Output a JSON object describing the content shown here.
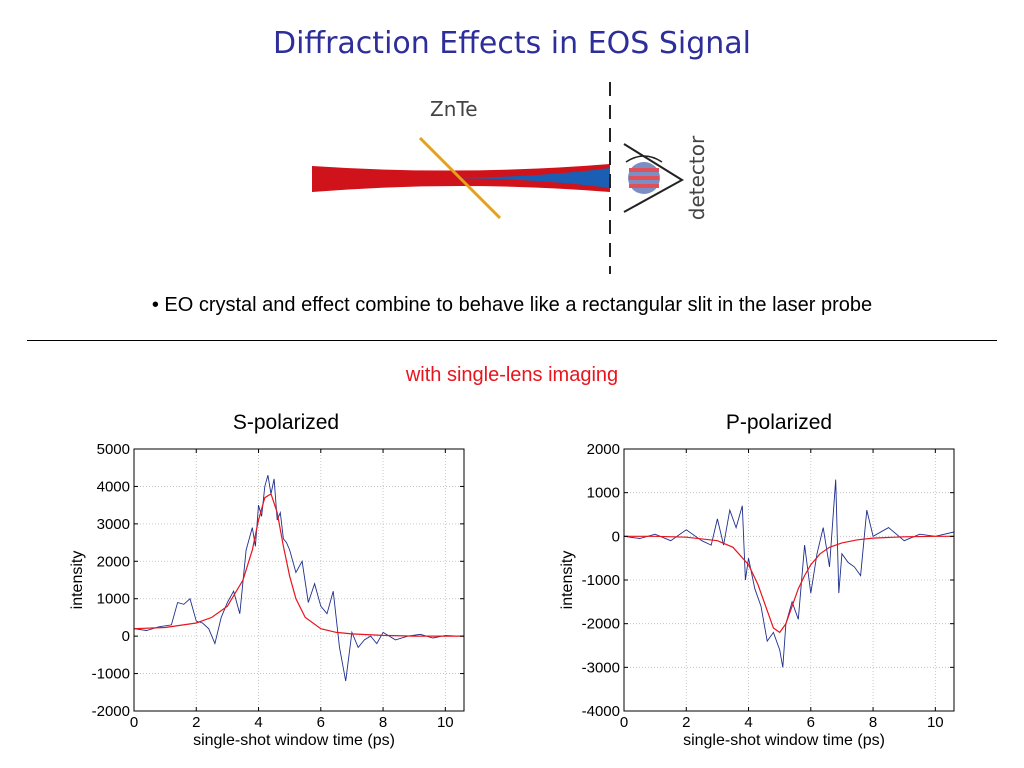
{
  "slide": {
    "title": "Diffraction Effects in EOS Signal",
    "bullet": "• EO crystal and effect combine to behave like a rectangular slit in the laser probe",
    "subtitle": "with single-lens imaging"
  },
  "diagram": {
    "crystal_label": "ZnTe",
    "detector_label": "detector",
    "colors": {
      "beam": "#d0121b",
      "diffracted": "#1a5fb4",
      "crystal": "#e3a21a"
    }
  },
  "colors": {
    "data": "#1f2f8c",
    "fit": "#e8141e"
  },
  "chart_data": [
    {
      "type": "line",
      "title": "S-polarized",
      "xlabel": "single-shot window time (ps)",
      "ylabel": "intensity",
      "xlim": [
        0,
        10.6
      ],
      "ylim": [
        -2000,
        5000
      ],
      "xticks": [
        0,
        2,
        4,
        6,
        8,
        10
      ],
      "yticks": [
        5000,
        4000,
        3000,
        2000,
        1000,
        0,
        -1000,
        -2000
      ],
      "grid": true,
      "series": [
        {
          "role": "measured",
          "x": [
            0,
            0.4,
            0.8,
            1.2,
            1.4,
            1.6,
            1.8,
            2.0,
            2.2,
            2.4,
            2.6,
            2.8,
            3.0,
            3.2,
            3.4,
            3.6,
            3.8,
            3.9,
            4.0,
            4.1,
            4.2,
            4.3,
            4.4,
            4.5,
            4.6,
            4.7,
            4.8,
            4.9,
            5.0,
            5.2,
            5.4,
            5.6,
            5.8,
            6.0,
            6.2,
            6.4,
            6.6,
            6.8,
            7.0,
            7.2,
            7.4,
            7.6,
            7.8,
            8.0,
            8.4,
            8.8,
            9.2,
            9.6,
            10.0,
            10.4,
            10.6
          ],
          "y": [
            200,
            150,
            250,
            300,
            900,
            850,
            1000,
            400,
            350,
            200,
            -200,
            500,
            900,
            1200,
            600,
            2300,
            2900,
            2400,
            3500,
            3200,
            4000,
            4300,
            3800,
            4200,
            3100,
            3300,
            2600,
            2500,
            2300,
            1700,
            2000,
            900,
            1400,
            800,
            600,
            1200,
            -300,
            -1200,
            100,
            -300,
            -100,
            0,
            -200,
            100,
            -100,
            0,
            50,
            -50,
            20,
            0,
            0
          ]
        },
        {
          "role": "fit",
          "x": [
            0,
            1,
            2,
            2.5,
            3,
            3.5,
            3.8,
            4.0,
            4.2,
            4.4,
            4.6,
            4.8,
            5.0,
            5.2,
            5.5,
            6.0,
            6.5,
            7,
            8,
            9,
            10,
            10.6
          ],
          "y": [
            200,
            230,
            350,
            500,
            800,
            1500,
            2300,
            3100,
            3700,
            3800,
            3300,
            2400,
            1600,
            1000,
            500,
            200,
            100,
            60,
            20,
            0,
            0,
            0
          ]
        }
      ]
    },
    {
      "type": "line",
      "title": "P-polarized",
      "xlabel": "single-shot window time (ps)",
      "ylabel": "intensity",
      "xlim": [
        0,
        10.6
      ],
      "ylim": [
        -4000,
        2000
      ],
      "xticks": [
        0,
        2,
        4,
        6,
        8,
        10
      ],
      "yticks": [
        2000,
        1000,
        0,
        -1000,
        -2000,
        -3000,
        -4000
      ],
      "grid": true,
      "series": [
        {
          "role": "measured",
          "x": [
            0,
            0.5,
            1.0,
            1.5,
            2.0,
            2.5,
            2.8,
            3.0,
            3.2,
            3.4,
            3.6,
            3.8,
            3.9,
            4.0,
            4.2,
            4.4,
            4.6,
            4.8,
            5.0,
            5.1,
            5.2,
            5.4,
            5.6,
            5.8,
            6.0,
            6.2,
            6.4,
            6.6,
            6.8,
            6.9,
            7.0,
            7.2,
            7.4,
            7.6,
            7.8,
            8.0,
            8.5,
            9.0,
            9.5,
            10.0,
            10.6
          ],
          "y": [
            0,
            -50,
            50,
            -100,
            150,
            -100,
            -200,
            400,
            -200,
            600,
            200,
            700,
            -1000,
            -500,
            -1200,
            -1600,
            -2400,
            -2200,
            -2600,
            -3000,
            -2000,
            -1500,
            -1900,
            -200,
            -1300,
            -400,
            200,
            -700,
            1300,
            -1300,
            -400,
            -600,
            -700,
            -900,
            600,
            0,
            200,
            -100,
            50,
            0,
            100
          ]
        },
        {
          "role": "fit",
          "x": [
            0,
            1,
            2,
            3,
            3.5,
            4.0,
            4.3,
            4.6,
            4.8,
            5.0,
            5.2,
            5.4,
            5.6,
            5.8,
            6.0,
            6.3,
            6.6,
            7.0,
            7.5,
            8,
            9,
            10,
            10.6
          ],
          "y": [
            0,
            0,
            -20,
            -100,
            -250,
            -650,
            -1100,
            -1700,
            -2100,
            -2200,
            -2000,
            -1600,
            -1200,
            -900,
            -650,
            -400,
            -250,
            -150,
            -80,
            -40,
            -10,
            0,
            0
          ]
        }
      ]
    }
  ]
}
